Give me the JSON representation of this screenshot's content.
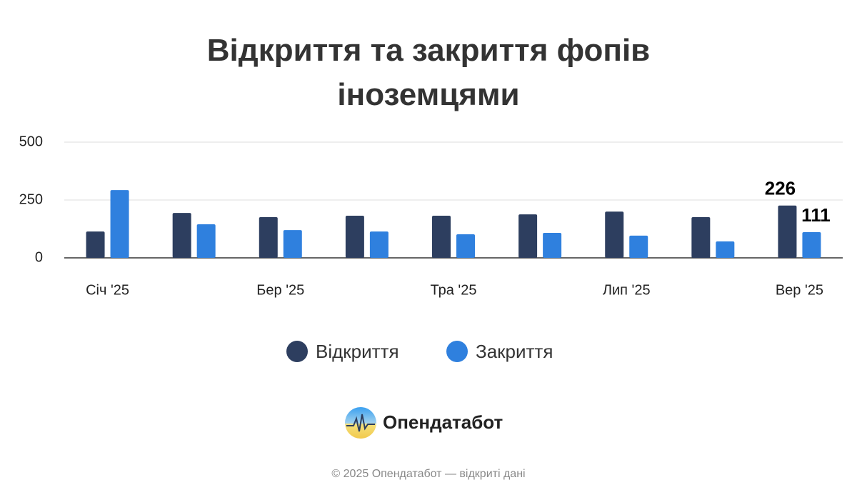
{
  "chart_data": {
    "type": "bar",
    "title": "Відкриття та закриття фопів іноземцями",
    "categories": [
      "Січ '25",
      null,
      "Бер '25",
      null,
      "Тра '25",
      null,
      "Лип '25",
      null,
      "Вер '25"
    ],
    "series": [
      {
        "name": "Відкриття",
        "color": "#2d3e5f",
        "values": [
          114,
          194,
          176,
          182,
          182,
          188,
          200,
          176,
          226
        ]
      },
      {
        "name": "Закриття",
        "color": "#2f80de",
        "values": [
          293,
          145,
          120,
          114,
          102,
          108,
          96,
          71,
          111
        ]
      }
    ],
    "ylim": [
      0,
      500
    ],
    "yticks": [
      0,
      250,
      500
    ],
    "grid": true,
    "legend": "bottom",
    "data_labels": "last"
  },
  "footer": {
    "brand": "Опендатабот",
    "copyright": "© 2025 Опендатабот — відкриті дані"
  }
}
